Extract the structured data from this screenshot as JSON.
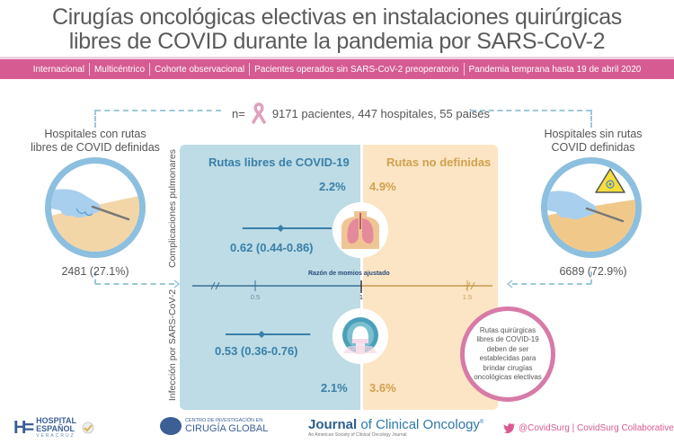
{
  "title": {
    "line1": "Cirugías oncológicas electivas en instalaciones quirúrgicas",
    "line2": "libres de COVID durante la pandemia por SARS-CoV-2"
  },
  "banner": {
    "items": [
      "Internacional",
      "Multicéntrico",
      "Cohorte observacional",
      "Pacientes operados sin SARS-CoV-2 preoperatorio",
      "Pandemia temprana hasta 19 de abril 2020"
    ]
  },
  "sample": {
    "prefix": "n=",
    "icon": "pink-ribbon-icon",
    "text": "9171 pacientes, 447 hospitales, 55 paises"
  },
  "hospitals": {
    "defined": {
      "label_line1": "Hospitales con rutas",
      "label_line2": "libres de COVID definidas",
      "count": "2481 (27.1%)"
    },
    "undefined": {
      "label_line1": "Hospitales sin rutas",
      "label_line2": "COVID definidas",
      "count": "6689 (72.9%)"
    }
  },
  "panels": {
    "left_header": "Rutas libres de COVID-19",
    "right_header": "Rutas no definidas"
  },
  "outcomes": {
    "pulmonary": {
      "label": "Complicaciones pulmonares",
      "left_pct": "2.2%",
      "right_pct": "4.9%",
      "or_text": "0.62 (0.44-0.86)",
      "or": 0.62,
      "ci_low": 0.44,
      "ci_high": 0.86,
      "icon": "lungs-icon"
    },
    "infection": {
      "label": "Infección por SARS-CoV-2",
      "left_pct": "2.1%",
      "right_pct": "3.6%",
      "or_text": "0.53 (0.36-0.76)",
      "or": 0.53,
      "ci_low": 0.36,
      "ci_high": 0.76,
      "icon": "ct-scanner-icon"
    }
  },
  "axis": {
    "label": "Razón de momios ajustado",
    "ticks": [
      "0.5",
      "1",
      "1.5"
    ]
  },
  "message": "Rutas quirúrgicas libres de COVID-19 deben de ser establecidas para brindar cirugías oncológicas electivas",
  "footer": {
    "he_line1": "HOSPITAL",
    "he_line2": "ESPAÑOL",
    "he_line3": "VERACRUZ",
    "cig_small": "CENTRO DE INVESTIGACIÓN EN",
    "cig_big": "CIRUGÍA GLOBAL",
    "jco_bold": "Journal",
    "jco_rest": " of Clinical Oncology",
    "jco_reg": "®",
    "jco_sub": "An American Society of Clinical Oncology Journal",
    "social": "@CovidSurg | CovidSurg Collaborative"
  },
  "colors": {
    "banner": "#d65b93",
    "blue_panel": "#bddce6",
    "orange_panel": "#fbe5c4",
    "blue_text": "#3a7fa8",
    "orange_text": "#d2a050"
  }
}
